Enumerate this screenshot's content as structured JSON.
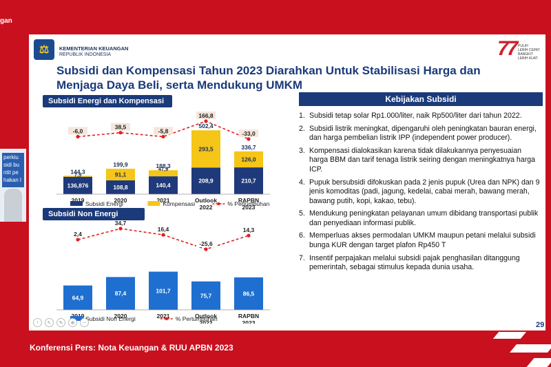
{
  "top_fragment": "gan",
  "caption": "Konferensi Pers: Nota Keuangan & RUU APBN 2023",
  "slide": {
    "ministry_name": "KEMENTERIAN KEUANGAN",
    "ministry_sub": "REPUBLIK INDONESIA",
    "ri77_number": "77",
    "ri77_tag1": "PULIH",
    "ri77_tag2": "LEBIH CEPAT",
    "ri77_tag3": "BANGKIT",
    "ri77_tag4": "LEBIH KUAT",
    "title_line1": "Subsidi dan Kompensasi Tahun 2023 Diarahkan Untuk Stabilisasi Harga dan",
    "title_line2": "Menjaga Daya Beli, serta Mendukung UMKM",
    "page_number": "29",
    "cam_text": [
      "perkiu",
      "sidi bu",
      "ntit pe",
      "hakan l"
    ],
    "policy_title": "Kebijakan Subsidi",
    "policy": [
      {
        "n": "1.",
        "t": "Subsidi tetap solar Rp1.000/liter, naik Rp500/liter dari tahun 2022."
      },
      {
        "n": "2.",
        "t": "Subsidi listrik meningkat, dipengaruhi oleh peningkatan bauran energi, dan harga pembelian listrik IPP (independent power producer)."
      },
      {
        "n": "3.",
        "t": "Kompensasi dialokasikan karena  tidak dilakukannya penyesuaian harga BBM dan tarif tenaga listrik seiring dengan meningkatnya harga ICP."
      },
      {
        "n": "4.",
        "t": "Pupuk bersubsidi difokuskan pada 2 jenis pupuk (Urea dan NPK) dan 9 jenis komoditas (padi, jagung, kedelai, cabai merah, bawang merah, bawang putih, kopi, kakao, tebu)."
      },
      {
        "n": "5.",
        "t": "Mendukung peningkatan pelayanan umum dibidang transportasi publik dan penyediaan informasi publik."
      },
      {
        "n": "6.",
        "t": "Memperluas akses  permodalan UMKM maupun petani  melalui subsidi bunga KUR dengan target plafon Rp450 T"
      },
      {
        "n": "7.",
        "t": "Insentif perpajakan melalui subsidi pajak penghasilan ditanggung pemerintah, sebagai stimulus kepada dunia usaha."
      }
    ]
  },
  "chart_data": [
    {
      "type": "bar",
      "title": "Subsidi Energi dan Kompensasi",
      "stacked": true,
      "categories": [
        "2019",
        "2020",
        "2021",
        "Outlook 2022",
        "RAPBN 2023"
      ],
      "category_lines": [
        [
          "2019"
        ],
        [
          "2020"
        ],
        [
          "2021"
        ],
        [
          "Outlook",
          "2022"
        ],
        [
          "RAPBN",
          "2023"
        ]
      ],
      "series": [
        {
          "name": "Subsidi Energi",
          "values": [
            136.876,
            108.8,
            140.4,
            208.9,
            210.7
          ],
          "labels": [
            "136,876",
            "108,8",
            "140,4",
            "208,9",
            "210,7"
          ],
          "color": "#1f3a7a"
        },
        {
          "name": "Kompensasi",
          "values": [
            7.5,
            91.1,
            47.9,
            293.5,
            126.0
          ],
          "labels": [
            "7,5",
            "91,1",
            "47,9",
            "293,5",
            "126,0"
          ],
          "color": "#f5c518"
        }
      ],
      "totals": [
        144.3,
        199.9,
        188.3,
        502.4,
        336.7
      ],
      "total_labels": [
        "144,3",
        "199,9",
        "188,3",
        "502,4",
        "336,7"
      ],
      "growth": {
        "name": "% Pertumbuhan",
        "values": [
          -6.0,
          38.5,
          -5.8,
          166.8,
          -33.0
        ],
        "labels": [
          "-6,0",
          "38,5",
          "-5,8",
          "166,8",
          "-33,0"
        ],
        "color": "#e02020"
      },
      "legend": [
        "Subsidi Energi",
        "Kompensasi",
        "% Pertumbuhan"
      ],
      "ylim": [
        0,
        520
      ]
    },
    {
      "type": "bar",
      "title": "Subsidi Non Energi",
      "categories": [
        "2019",
        "2020",
        "2021",
        "Outlook 2022",
        "RAPBN 2023"
      ],
      "category_lines": [
        [
          "2019"
        ],
        [
          "2020"
        ],
        [
          "2021"
        ],
        [
          "Outlook",
          "2022"
        ],
        [
          "RAPBN",
          "2023"
        ]
      ],
      "series": [
        {
          "name": "Subsidi Non Energi",
          "values": [
            64.9,
            87.4,
            101.7,
            75.7,
            86.5
          ],
          "labels": [
            "64,9",
            "87,4",
            "101,7",
            "75,7",
            "86,5"
          ],
          "color": "#1e6fd0"
        }
      ],
      "growth": {
        "name": "% Pertumbuhan",
        "values": [
          2.4,
          34.7,
          16.4,
          -25.6,
          14.3
        ],
        "labels": [
          "2,4",
          "34,7",
          "16,4",
          "-25,6",
          "14,3"
        ],
        "color": "#e02020"
      },
      "legend": [
        "Subsidi Non Energi",
        "% Pertumbuhan"
      ],
      "ylim": [
        0,
        110
      ]
    }
  ]
}
